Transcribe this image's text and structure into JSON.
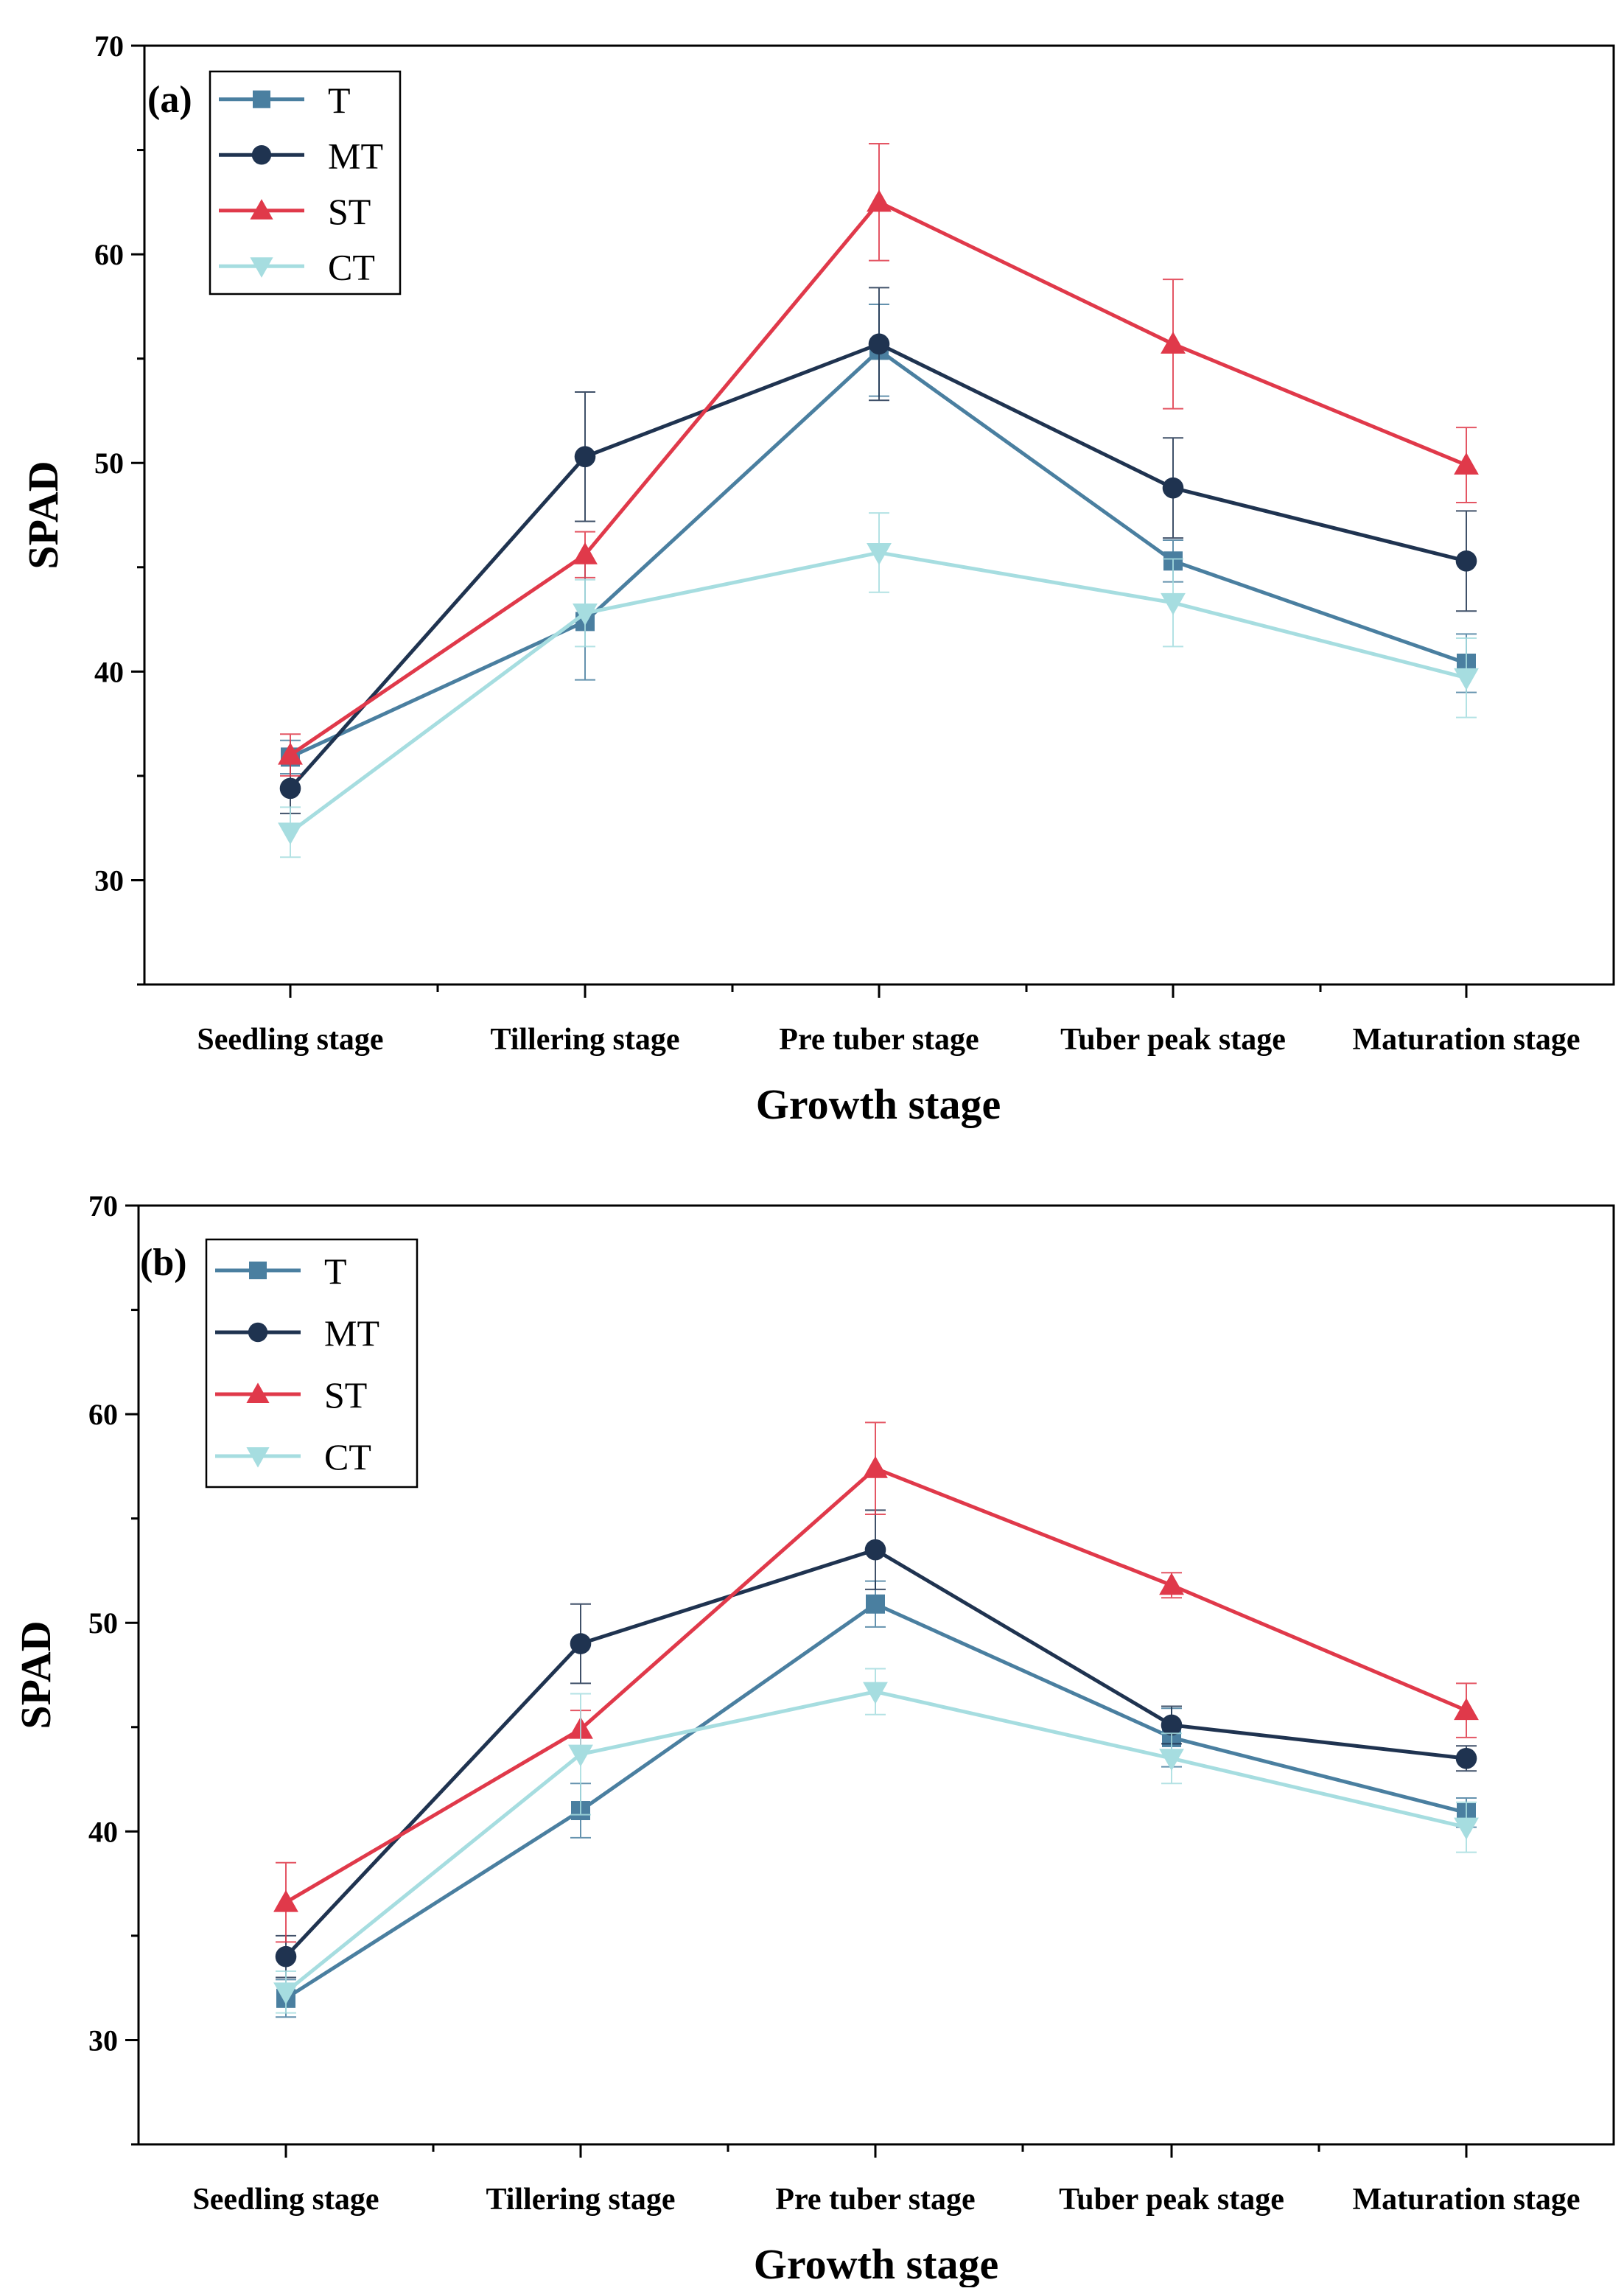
{
  "series_style": {
    "T": {
      "color": "#4a7fa0",
      "marker": "square"
    },
    "MT": {
      "color": "#1f3350",
      "marker": "circle"
    },
    "ST": {
      "color": "#e0394a",
      "marker": "triangle-up"
    },
    "CT": {
      "color": "#a6dde0",
      "marker": "triangle-down"
    }
  },
  "chart_data": [
    {
      "type": "line",
      "panel_label": "(a)",
      "xlabel": "Growth stage",
      "ylabel": "SPAD",
      "ylim": [
        25,
        70
      ],
      "yticks": [
        "30",
        "40",
        "50",
        "60",
        "70"
      ],
      "categories": [
        "Seedling stage",
        "Tillering stage",
        "Pre tuber stage",
        "Tuber peak stage",
        "Maturation stage"
      ],
      "legend_position": "top-left",
      "series": [
        {
          "name": "T",
          "values": [
            35.9,
            42.4,
            55.4,
            45.3,
            40.4
          ],
          "errors": [
            0.8,
            2.8,
            2.2,
            1.0,
            1.4
          ]
        },
        {
          "name": "MT",
          "values": [
            34.4,
            50.3,
            55.7,
            48.8,
            45.3
          ],
          "errors": [
            1.2,
            3.1,
            2.7,
            2.4,
            2.4
          ]
        },
        {
          "name": "ST",
          "values": [
            36.0,
            45.6,
            62.5,
            55.7,
            49.9
          ],
          "errors": [
            1.0,
            1.1,
            2.8,
            3.1,
            1.8
          ]
        },
        {
          "name": "CT",
          "values": [
            32.3,
            42.8,
            45.7,
            43.3,
            39.7
          ],
          "errors": [
            1.2,
            1.6,
            1.9,
            2.1,
            1.9
          ]
        }
      ]
    },
    {
      "type": "line",
      "panel_label": "(b)",
      "xlabel": "Growth stage",
      "ylabel": "SPAD",
      "ylim": [
        25,
        70
      ],
      "yticks": [
        "30",
        "40",
        "50",
        "60",
        "70"
      ],
      "categories": [
        "Seedling stage",
        "Tillering stage",
        "Pre tuber stage",
        "Tuber peak stage",
        "Maturation stage"
      ],
      "legend_position": "top-left",
      "series": [
        {
          "name": "T",
          "values": [
            32.0,
            41.0,
            50.9,
            44.5,
            40.9
          ],
          "errors": [
            0.9,
            1.3,
            1.1,
            1.4,
            0.7
          ]
        },
        {
          "name": "MT",
          "values": [
            34.0,
            49.0,
            53.5,
            45.1,
            43.5
          ],
          "errors": [
            1.0,
            1.9,
            1.9,
            0.9,
            0.6
          ]
        },
        {
          "name": "ST",
          "values": [
            36.6,
            44.9,
            57.4,
            51.8,
            45.8
          ],
          "errors": [
            1.9,
            0.9,
            2.2,
            0.6,
            1.3
          ]
        },
        {
          "name": "CT",
          "values": [
            32.3,
            43.7,
            46.7,
            43.5,
            40.2
          ],
          "errors": [
            1.0,
            2.9,
            1.1,
            1.2,
            1.2
          ]
        }
      ]
    }
  ]
}
